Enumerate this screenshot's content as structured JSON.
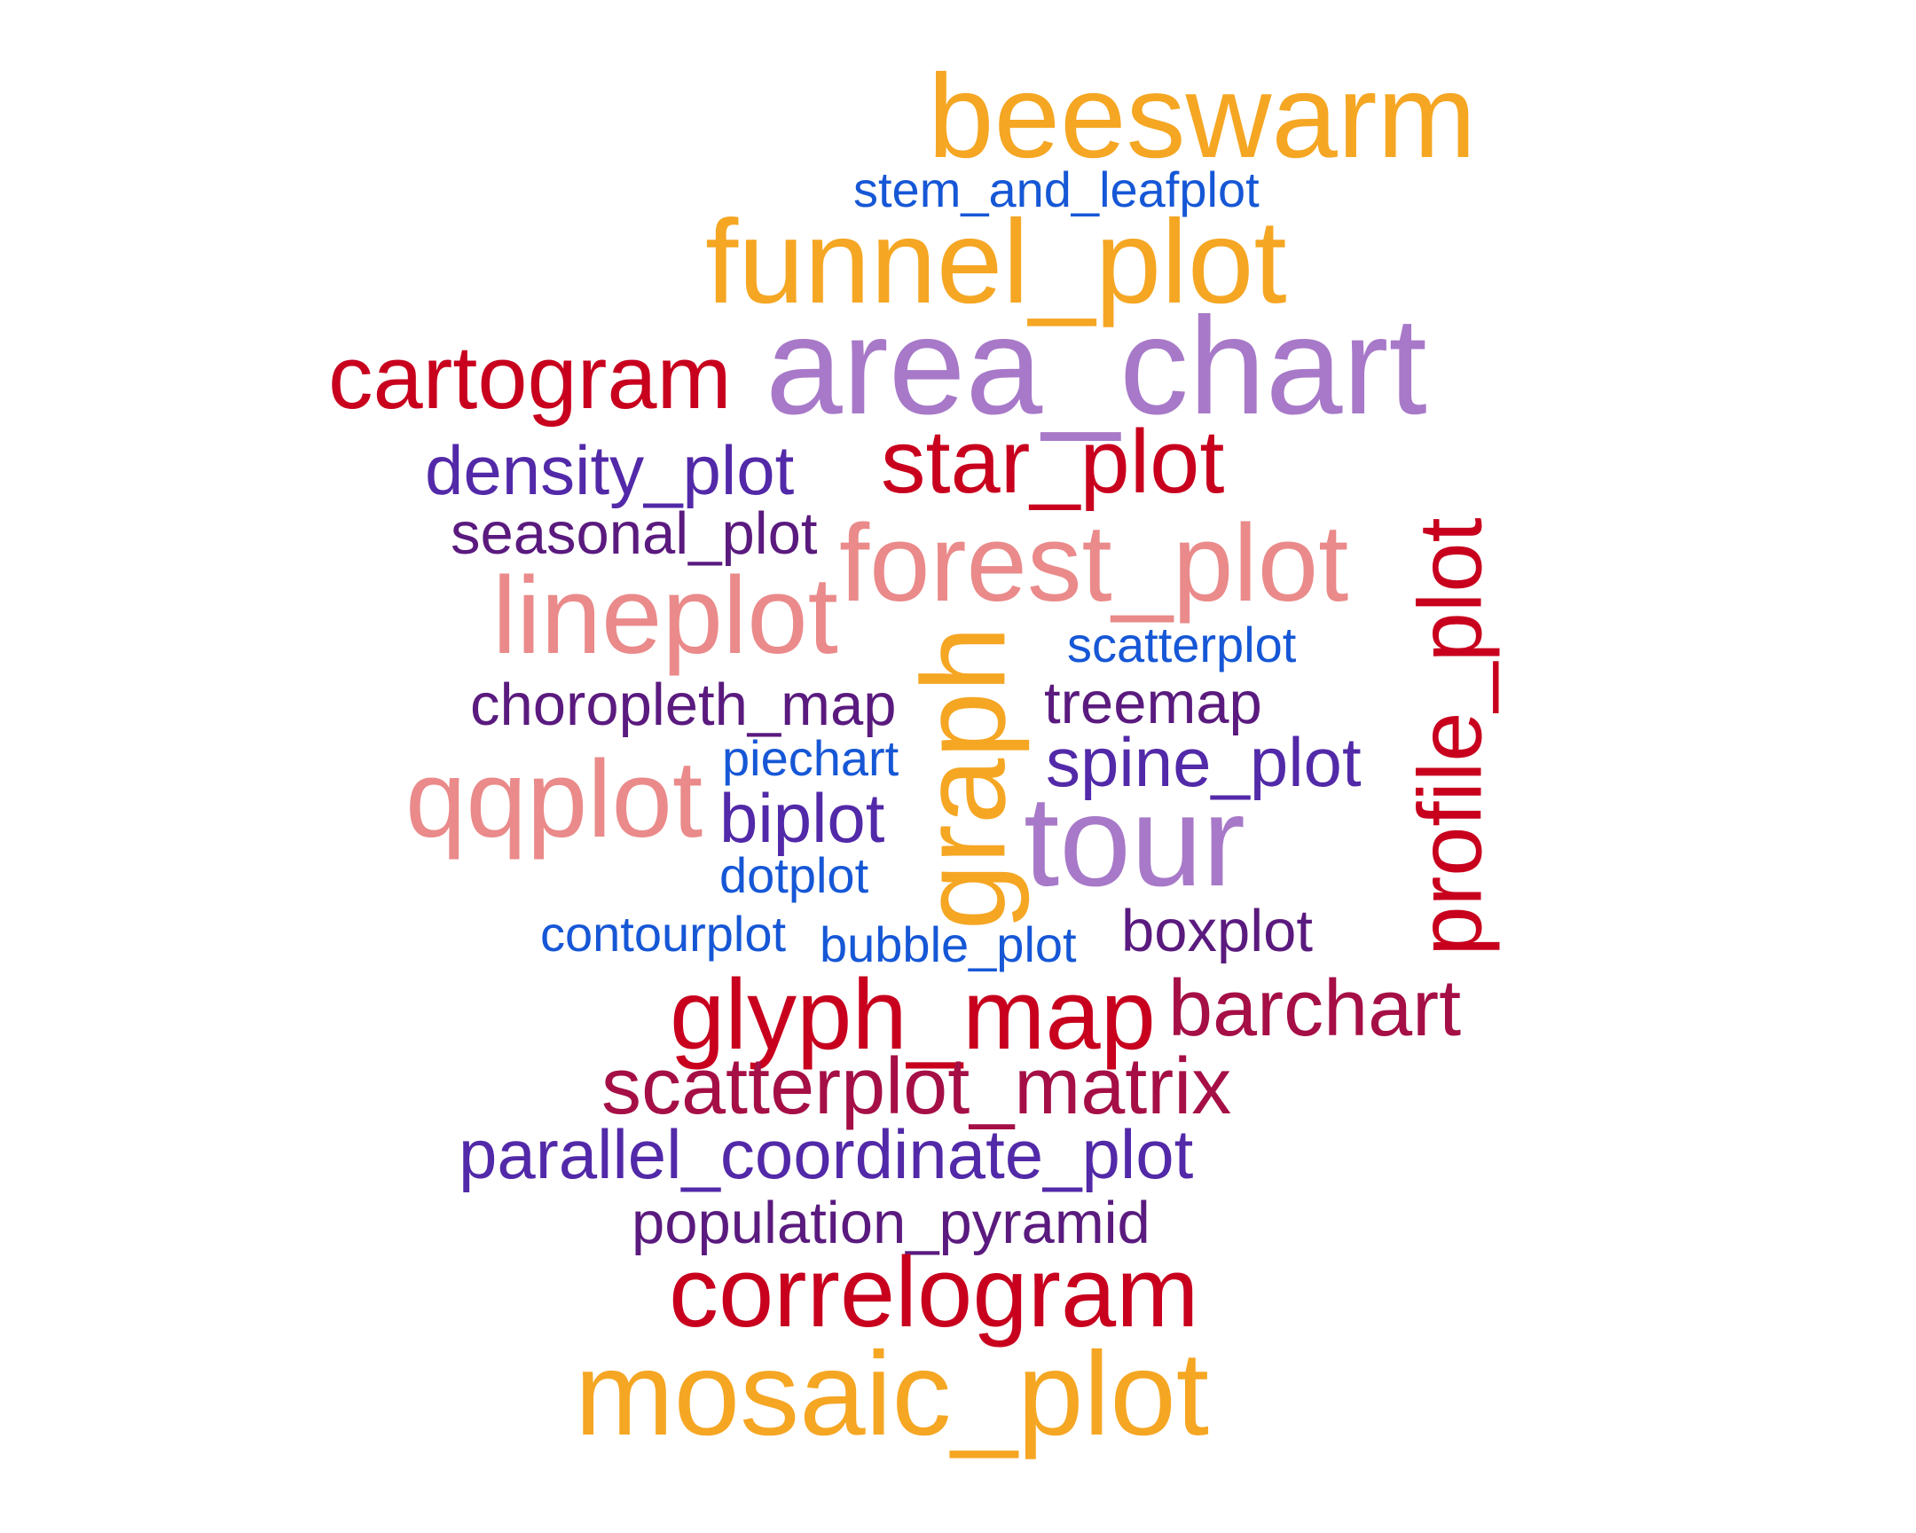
{
  "words": [
    {
      "text": "beeswarm",
      "color": "#F5A623"
    },
    {
      "text": "stem_and_leafplot",
      "color": "#1657D6"
    },
    {
      "text": "funnel_plot",
      "color": "#F5A623"
    },
    {
      "text": "cartogram",
      "color": "#C8001E"
    },
    {
      "text": "area_chart",
      "color": "#A779C8"
    },
    {
      "text": "density_plot",
      "color": "#5229A8"
    },
    {
      "text": "star_plot",
      "color": "#C8001E"
    },
    {
      "text": "seasonal_plot",
      "color": "#5A1A7E"
    },
    {
      "text": "forest_plot",
      "color": "#EA8A8A"
    },
    {
      "text": "profile_plot",
      "color": "#C8001E"
    },
    {
      "text": "lineplot",
      "color": "#EA8A8A"
    },
    {
      "text": "scatterplot",
      "color": "#1657D6"
    },
    {
      "text": "graph",
      "color": "#F5A623"
    },
    {
      "text": "choropleth_map",
      "color": "#5A1A7E"
    },
    {
      "text": "treemap",
      "color": "#5A1A7E"
    },
    {
      "text": "piechart",
      "color": "#1657D6"
    },
    {
      "text": "qqplot",
      "color": "#EA8A8A"
    },
    {
      "text": "spine_plot",
      "color": "#5229A8"
    },
    {
      "text": "biplot",
      "color": "#5229A8"
    },
    {
      "text": "tour",
      "color": "#A779C8"
    },
    {
      "text": "dotplot",
      "color": "#1657D6"
    },
    {
      "text": "contourplot",
      "color": "#1657D6"
    },
    {
      "text": "bubble_plot",
      "color": "#1657D6"
    },
    {
      "text": "boxplot",
      "color": "#5A1A7E"
    },
    {
      "text": "glyph_map",
      "color": "#C8001E"
    },
    {
      "text": "barchart",
      "color": "#A50F46"
    },
    {
      "text": "scatterplot_matrix",
      "color": "#A50F46"
    },
    {
      "text": "parallel_coordinate_plot",
      "color": "#5229A8"
    },
    {
      "text": "population_pyramid",
      "color": "#5A1A7E"
    },
    {
      "text": "correlogram",
      "color": "#C8001E"
    },
    {
      "text": "mosaic_plot",
      "color": "#F5A623"
    }
  ]
}
